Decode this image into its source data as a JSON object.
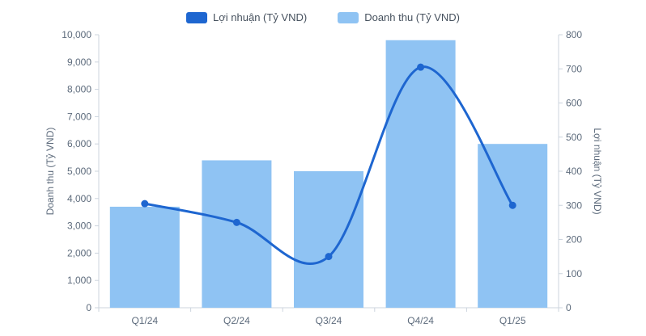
{
  "legend": [
    {
      "label": "Lợi nhuận (Tỷ VND)",
      "color": "#1e66d0"
    },
    {
      "label": "Doanh thu (Tỷ VND)",
      "color": "#8fc3f3"
    }
  ],
  "axes": {
    "left_title": "Doanh thu (Tỷ VND)",
    "right_title": "Lợi nhuận (Tỷ VND)"
  },
  "chart_data": {
    "type": "bar",
    "subtype": "combo-bar-line",
    "categories": [
      "Q1/24",
      "Q2/24",
      "Q3/24",
      "Q4/24",
      "Q1/25"
    ],
    "series": [
      {
        "name": "Doanh thu (Tỷ VND)",
        "type": "bar",
        "axis": "left",
        "color": "#8fc3f3",
        "values": [
          3700,
          5400,
          5000,
          9800,
          6000
        ]
      },
      {
        "name": "Lợi nhuận (Tỷ VND)",
        "type": "line",
        "axis": "right",
        "color": "#1e66d0",
        "values": [
          305,
          250,
          150,
          705,
          300
        ]
      }
    ],
    "left_axis": {
      "label": "Doanh thu (Tỷ VND)",
      "min": 0,
      "max": 10000,
      "step": 1000
    },
    "right_axis": {
      "label": "Lợi nhuận (Tỷ VND)",
      "min": 0,
      "max": 800,
      "step": 100
    },
    "legend_position": "top",
    "grid": false,
    "title": ""
  }
}
